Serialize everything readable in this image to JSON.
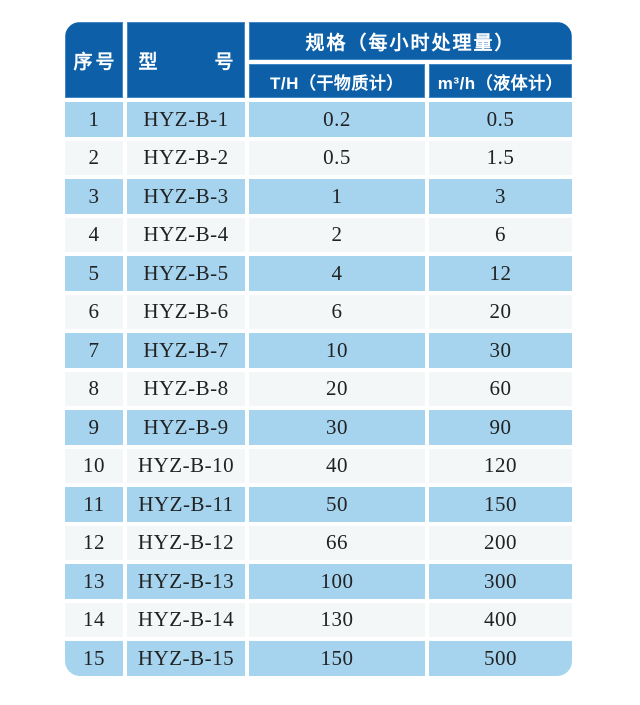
{
  "colors": {
    "header_blue": "#0d5fa8",
    "header_text": "#ffffff",
    "row_light_blue": "#a6d4ef",
    "row_off_white": "#f3f7f8",
    "body_text": "#222222",
    "gridline_white": "#ffffff"
  },
  "table": {
    "header": {
      "serial": "序号",
      "model": "型　　　号",
      "spec_group": "规格（每小时处理量）",
      "dry": "T/H（干物质计）",
      "liquid": "m³/h（液体计）"
    }
  },
  "chart_data": {
    "type": "table",
    "title": "规格（每小时处理量）",
    "columns": [
      "序号",
      "型号",
      "T/H（干物质计）",
      "m³/h（液体计）"
    ],
    "rows": [
      [
        "1",
        "HYZ-B-1",
        "0.2",
        "0.5"
      ],
      [
        "2",
        "HYZ-B-2",
        "0.5",
        "1.5"
      ],
      [
        "3",
        "HYZ-B-3",
        "1",
        "3"
      ],
      [
        "4",
        "HYZ-B-4",
        "2",
        "6"
      ],
      [
        "5",
        "HYZ-B-5",
        "4",
        "12"
      ],
      [
        "6",
        "HYZ-B-6",
        "6",
        "20"
      ],
      [
        "7",
        "HYZ-B-7",
        "10",
        "30"
      ],
      [
        "8",
        "HYZ-B-8",
        "20",
        "60"
      ],
      [
        "9",
        "HYZ-B-9",
        "30",
        "90"
      ],
      [
        "10",
        "HYZ-B-10",
        "40",
        "120"
      ],
      [
        "11",
        "HYZ-B-11",
        "50",
        "150"
      ],
      [
        "12",
        "HYZ-B-12",
        "66",
        "200"
      ],
      [
        "13",
        "HYZ-B-13",
        "100",
        "300"
      ],
      [
        "14",
        "HYZ-B-14",
        "130",
        "400"
      ],
      [
        "15",
        "HYZ-B-15",
        "150",
        "500"
      ]
    ]
  }
}
